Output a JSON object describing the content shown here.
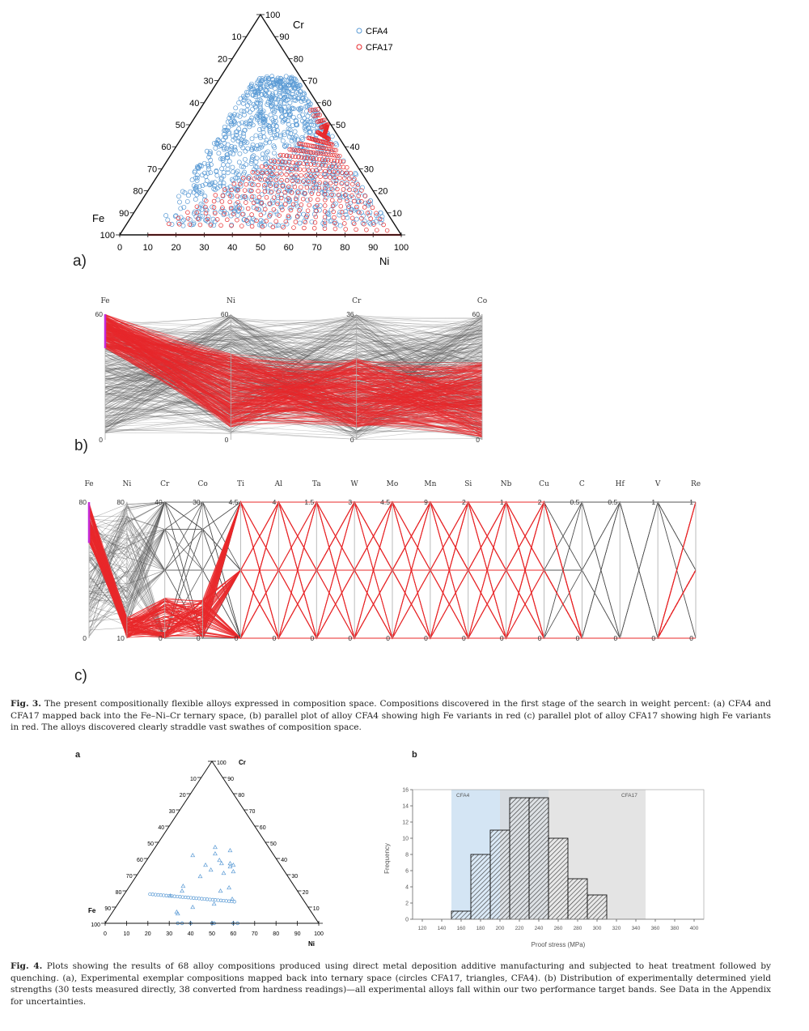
{
  "fig3": {
    "panel_a": {
      "label": "a)",
      "vertex_labels": {
        "cr": "Cr",
        "fe": "Fe",
        "ni": "Ni"
      },
      "ticks": [
        "0",
        "10",
        "20",
        "30",
        "40",
        "50",
        "60",
        "70",
        "80",
        "90",
        "100"
      ],
      "legend": [
        {
          "name": "CFA4",
          "color": "#5b9bd5"
        },
        {
          "name": "CFA17",
          "color": "#e8282b"
        }
      ]
    },
    "panel_b": {
      "label": "b)",
      "axes": [
        {
          "name": "Fe",
          "max": "60",
          "min": "0"
        },
        {
          "name": "Ni",
          "max": "60",
          "min": "0"
        },
        {
          "name": "Cr",
          "max": "36",
          "min": "0"
        },
        {
          "name": "Co",
          "max": "60",
          "min": "0"
        }
      ]
    },
    "panel_c": {
      "label": "c)",
      "axes": [
        {
          "name": "Fe",
          "max": "80",
          "min": "0"
        },
        {
          "name": "Ni",
          "max": "80",
          "min": "10"
        },
        {
          "name": "Cr",
          "max": "40",
          "min": "0"
        },
        {
          "name": "Co",
          "max": "30",
          "min": "0"
        },
        {
          "name": "Ti",
          "max": "4.5",
          "min": "0"
        },
        {
          "name": "Al",
          "max": "4",
          "min": "0"
        },
        {
          "name": "Ta",
          "max": "1.5",
          "min": "0"
        },
        {
          "name": "W",
          "max": "3",
          "min": "0"
        },
        {
          "name": "Mo",
          "max": "4.5",
          "min": "0"
        },
        {
          "name": "Mn",
          "max": "9",
          "min": "0"
        },
        {
          "name": "Si",
          "max": "2",
          "min": "0"
        },
        {
          "name": "Nb",
          "max": "1",
          "min": "0"
        },
        {
          "name": "Cu",
          "max": "2",
          "min": "0"
        },
        {
          "name": "C",
          "max": "0.5",
          "min": "0"
        },
        {
          "name": "Hf",
          "max": "0.5",
          "min": "0"
        },
        {
          "name": "V",
          "max": "1",
          "min": "0"
        },
        {
          "name": "Re",
          "max": "1",
          "min": "0"
        }
      ]
    },
    "caption_label": "Fig. 3.",
    "caption_text": "The present compositionally flexible alloys expressed in composition space. Compositions discovered in the first stage of the search in weight percent: (a) CFA4 and CFA17 mapped back into the Fe–Ni–Cr ternary space, (b) parallel plot of alloy CFA4 showing high Fe variants in red (c) parallel plot of alloy CFA17 showing high Fe variants in red. The alloys discovered clearly straddle vast swathes of composition space."
  },
  "fig4": {
    "panel_a": {
      "label": "a",
      "vertex_labels": {
        "cr": "Cr",
        "fe": "Fe",
        "ni": "Ni"
      },
      "ticks": [
        "0",
        "10",
        "20",
        "30",
        "40",
        "50",
        "60",
        "70",
        "80",
        "90",
        "100"
      ]
    },
    "panel_b": {
      "label": "b",
      "chart_data": {
        "type": "bar",
        "title": "",
        "xlabel": "Proof stress (MPa)",
        "ylabel": "Frequency",
        "xlim": [
          110,
          410
        ],
        "ylim": [
          0,
          16
        ],
        "xticks": [
          "120",
          "140",
          "160",
          "180",
          "200",
          "220",
          "240",
          "260",
          "280",
          "300",
          "320",
          "340",
          "360",
          "380",
          "400"
        ],
        "yticks": [
          "0",
          "2",
          "4",
          "6",
          "8",
          "10",
          "12",
          "14",
          "16"
        ],
        "bins": [
          {
            "from": 150,
            "to": 170,
            "value": 1
          },
          {
            "from": 170,
            "to": 190,
            "value": 8
          },
          {
            "from": 190,
            "to": 210,
            "value": 11
          },
          {
            "from": 210,
            "to": 230,
            "value": 15
          },
          {
            "from": 230,
            "to": 250,
            "value": 15
          },
          {
            "from": 250,
            "to": 270,
            "value": 10
          },
          {
            "from": 270,
            "to": 290,
            "value": 5
          },
          {
            "from": 290,
            "to": 310,
            "value": 3
          }
        ],
        "bands": [
          {
            "name": "CFA4",
            "from": 150,
            "to": 250,
            "color": "#cfe2f3"
          },
          {
            "name": "CFA17",
            "from": 200,
            "to": 350,
            "color": "#d9d9d9"
          }
        ]
      }
    },
    "caption_label": "Fig. 4.",
    "caption_text": "Plots showing the results of 68 alloy compositions produced using direct metal deposition additive manufacturing and subjected to heat treatment followed by quenching. (a), Experimental exemplar compositions mapped back into ternary space (circles CFA17, triangles, CFA4). (b) Distribution of experimentally determined yield strengths (30 tests measured directly, 38 converted from hardness readings)—all experimental alloys fall within our two performance target bands. See Data in the Appendix for uncertainties."
  }
}
